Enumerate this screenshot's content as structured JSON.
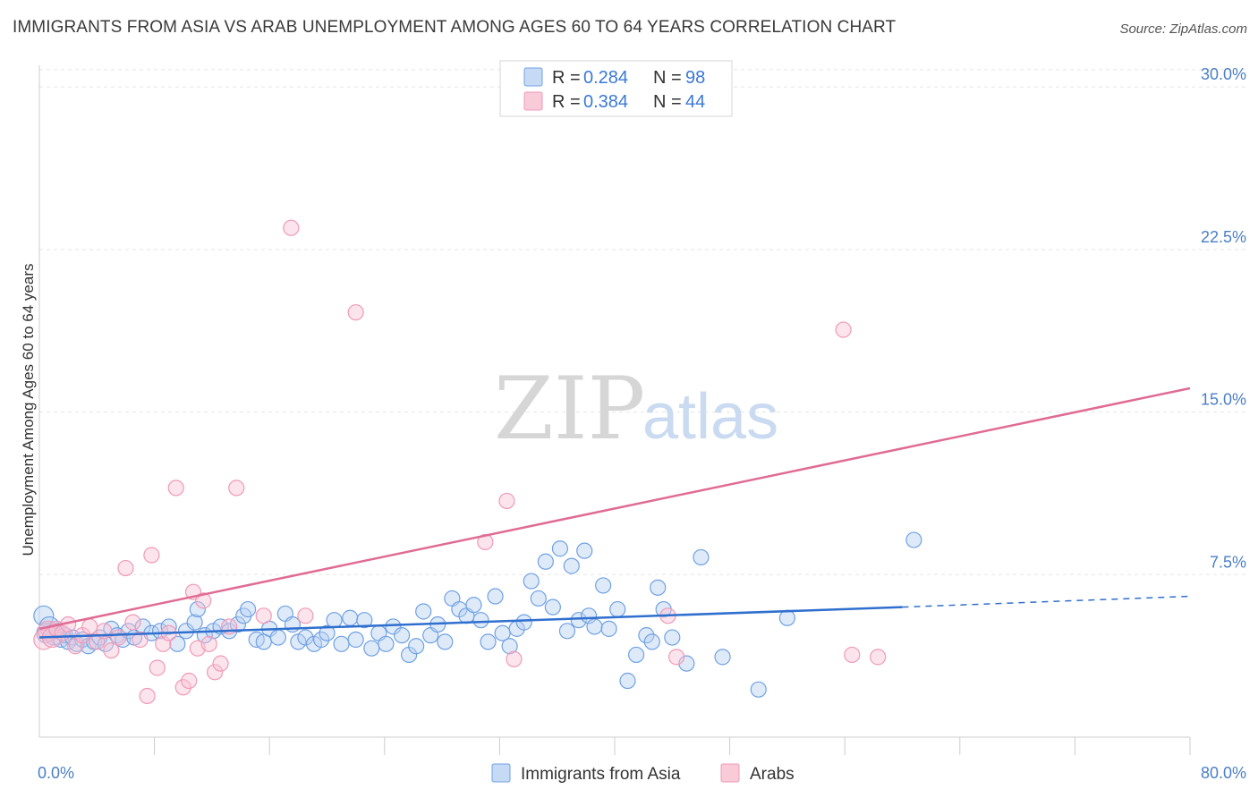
{
  "title": "IMMIGRANTS FROM ASIA VS ARAB UNEMPLOYMENT AMONG AGES 60 TO 64 YEARS CORRELATION CHART",
  "source": "Source: ZipAtlas.com",
  "watermark": {
    "zip": "ZIP",
    "atlas": "atlas"
  },
  "legend": {
    "r_label": "R =",
    "n_label": "N =",
    "series": [
      {
        "r": "0.284",
        "n": "98"
      },
      {
        "r": "0.384",
        "n": "44"
      }
    ]
  },
  "chart_data": {
    "type": "scatter",
    "title": "IMMIGRANTS FROM ASIA VS ARAB UNEMPLOYMENT AMONG AGES 60 TO 64 YEARS CORRELATION CHART",
    "xlabel": "",
    "ylabel": "Unemployment Among Ages 60 to 64 years",
    "xlim": [
      0,
      80
    ],
    "ylim": [
      0,
      31
    ],
    "x_tick_labels": [
      "0.0%",
      "80.0%"
    ],
    "y_ticks": [
      {
        "value": 7.5,
        "label": "7.5%"
      },
      {
        "value": 15.0,
        "label": "15.0%"
      },
      {
        "value": 22.5,
        "label": "22.5%"
      },
      {
        "value": 30.0,
        "label": "30.0%"
      }
    ],
    "colors": {
      "asia": "#6fa1e3",
      "asia_line": "#2f6fce",
      "arab": "#f09ab6",
      "arab_line": "#e06b94",
      "tick": "#4a7fc6"
    },
    "series": [
      {
        "name": "Immigrants from Asia",
        "r": 0.284,
        "n": 98,
        "trend": {
          "x0": 0,
          "y0": 4.6,
          "x1": 60,
          "y1": 6.0,
          "dash_x1": 80,
          "dash_y1": 6.5
        },
        "points": [
          [
            0.3,
            5.6
          ],
          [
            0.5,
            4.8
          ],
          [
            0.7,
            5.1
          ],
          [
            1.0,
            4.6
          ],
          [
            1.2,
            4.9
          ],
          [
            1.5,
            4.5
          ],
          [
            1.8,
            4.7
          ],
          [
            2.0,
            4.4
          ],
          [
            2.3,
            4.6
          ],
          [
            2.6,
            4.3
          ],
          [
            3.0,
            4.5
          ],
          [
            3.4,
            4.2
          ],
          [
            3.8,
            4.4
          ],
          [
            4.2,
            4.6
          ],
          [
            4.6,
            4.3
          ],
          [
            5.0,
            5.0
          ],
          [
            5.4,
            4.7
          ],
          [
            5.8,
            4.5
          ],
          [
            6.2,
            4.9
          ],
          [
            6.6,
            4.6
          ],
          [
            7.2,
            5.1
          ],
          [
            7.8,
            4.8
          ],
          [
            8.4,
            4.9
          ],
          [
            9.0,
            5.1
          ],
          [
            9.6,
            4.3
          ],
          [
            10.2,
            4.9
          ],
          [
            10.8,
            5.3
          ],
          [
            11.0,
            5.9
          ],
          [
            11.5,
            4.7
          ],
          [
            12.1,
            4.9
          ],
          [
            12.6,
            5.1
          ],
          [
            13.2,
            4.9
          ],
          [
            13.8,
            5.2
          ],
          [
            14.2,
            5.6
          ],
          [
            14.5,
            5.9
          ],
          [
            15.1,
            4.5
          ],
          [
            15.6,
            4.4
          ],
          [
            16.0,
            5.0
          ],
          [
            16.6,
            4.6
          ],
          [
            17.1,
            5.7
          ],
          [
            17.6,
            5.2
          ],
          [
            18.0,
            4.4
          ],
          [
            18.5,
            4.6
          ],
          [
            19.1,
            4.3
          ],
          [
            19.6,
            4.5
          ],
          [
            20.0,
            4.8
          ],
          [
            20.5,
            5.4
          ],
          [
            21.0,
            4.3
          ],
          [
            21.6,
            5.5
          ],
          [
            22.0,
            4.5
          ],
          [
            22.6,
            5.4
          ],
          [
            23.1,
            4.1
          ],
          [
            23.6,
            4.8
          ],
          [
            24.1,
            4.3
          ],
          [
            24.6,
            5.1
          ],
          [
            25.2,
            4.7
          ],
          [
            25.7,
            3.8
          ],
          [
            26.2,
            4.2
          ],
          [
            26.7,
            5.8
          ],
          [
            27.2,
            4.7
          ],
          [
            27.7,
            5.2
          ],
          [
            28.2,
            4.4
          ],
          [
            28.7,
            6.4
          ],
          [
            29.2,
            5.9
          ],
          [
            29.7,
            5.6
          ],
          [
            30.2,
            6.1
          ],
          [
            30.7,
            5.4
          ],
          [
            31.2,
            4.4
          ],
          [
            31.7,
            6.5
          ],
          [
            32.2,
            4.8
          ],
          [
            32.7,
            4.2
          ],
          [
            33.2,
            5.0
          ],
          [
            33.7,
            5.3
          ],
          [
            34.2,
            7.2
          ],
          [
            34.7,
            6.4
          ],
          [
            35.2,
            8.1
          ],
          [
            35.7,
            6.0
          ],
          [
            36.2,
            8.7
          ],
          [
            36.7,
            4.9
          ],
          [
            37.0,
            7.9
          ],
          [
            37.5,
            5.4
          ],
          [
            37.9,
            8.6
          ],
          [
            38.2,
            5.6
          ],
          [
            38.6,
            5.1
          ],
          [
            39.2,
            7.0
          ],
          [
            39.6,
            5.0
          ],
          [
            40.2,
            5.9
          ],
          [
            40.9,
            2.6
          ],
          [
            41.5,
            3.8
          ],
          [
            42.2,
            4.7
          ],
          [
            42.6,
            4.4
          ],
          [
            43.0,
            6.9
          ],
          [
            43.4,
            5.9
          ],
          [
            44.0,
            4.6
          ],
          [
            45.0,
            3.4
          ],
          [
            46.0,
            8.3
          ],
          [
            47.5,
            3.7
          ],
          [
            50.0,
            2.2
          ],
          [
            60.8,
            9.1
          ],
          [
            52.0,
            5.5
          ]
        ]
      },
      {
        "name": "Arabs",
        "r": 0.384,
        "n": 44,
        "trend": {
          "x0": 0,
          "y0": 5.0,
          "x1": 80,
          "y1": 16.1
        },
        "points": [
          [
            0.3,
            4.5
          ],
          [
            0.6,
            4.9
          ],
          [
            0.9,
            4.6
          ],
          [
            1.2,
            5.0
          ],
          [
            1.6,
            4.8
          ],
          [
            2.0,
            5.2
          ],
          [
            2.5,
            4.2
          ],
          [
            3.0,
            4.7
          ],
          [
            3.5,
            5.1
          ],
          [
            4.0,
            4.4
          ],
          [
            4.5,
            4.9
          ],
          [
            5.0,
            4.0
          ],
          [
            5.5,
            4.6
          ],
          [
            6.0,
            7.8
          ],
          [
            6.5,
            5.3
          ],
          [
            7.0,
            4.5
          ],
          [
            7.5,
            1.9
          ],
          [
            7.8,
            8.4
          ],
          [
            8.2,
            3.2
          ],
          [
            8.6,
            4.3
          ],
          [
            9.0,
            4.8
          ],
          [
            9.5,
            11.5
          ],
          [
            10.0,
            2.3
          ],
          [
            10.4,
            2.6
          ],
          [
            10.7,
            6.7
          ],
          [
            11.0,
            4.1
          ],
          [
            11.4,
            6.3
          ],
          [
            11.8,
            4.3
          ],
          [
            12.2,
            3.0
          ],
          [
            12.6,
            3.4
          ],
          [
            13.2,
            5.1
          ],
          [
            13.7,
            11.5
          ],
          [
            15.6,
            5.6
          ],
          [
            17.5,
            23.5
          ],
          [
            18.5,
            5.6
          ],
          [
            22.0,
            19.6
          ],
          [
            31.0,
            9.0
          ],
          [
            32.5,
            10.9
          ],
          [
            33.0,
            3.6
          ],
          [
            43.7,
            5.6
          ],
          [
            44.3,
            3.7
          ],
          [
            55.9,
            18.8
          ],
          [
            56.5,
            3.8
          ],
          [
            58.3,
            3.7
          ]
        ]
      }
    ]
  },
  "bottom_legend": [
    "Immigrants from Asia",
    "Arabs"
  ]
}
